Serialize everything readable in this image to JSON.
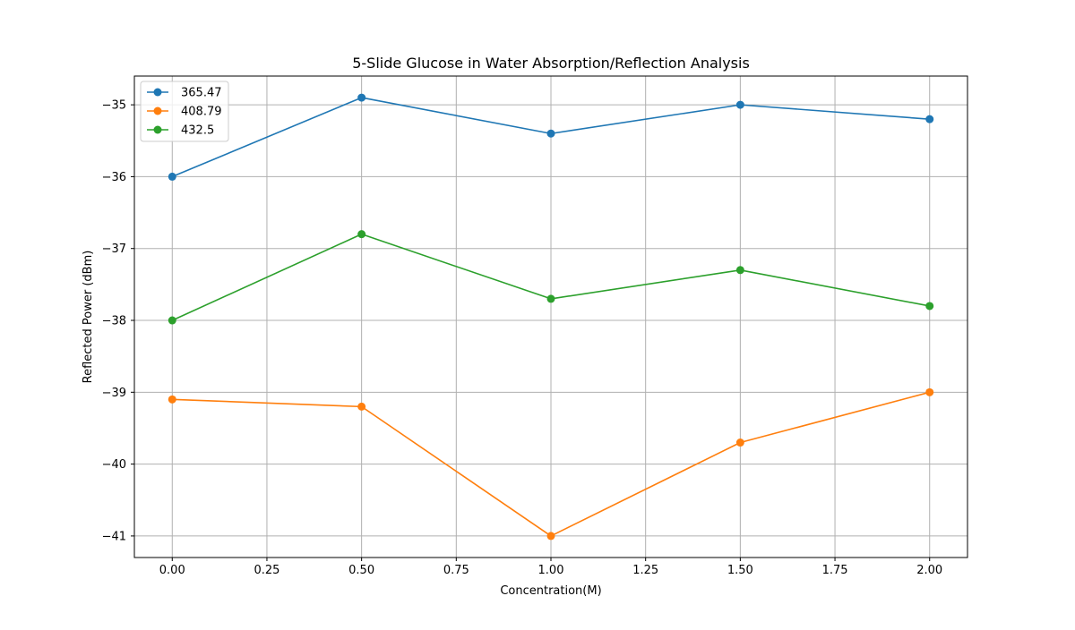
{
  "chart_data": {
    "type": "line",
    "title": "5-Slide Glucose in Water Absorption/Reflection Analysis",
    "xlabel": "Concentration(M)",
    "ylabel": "Reflected Power (dBm)",
    "x": [
      0.0,
      0.5,
      1.0,
      1.5,
      2.0
    ],
    "xlim": [
      -0.1,
      2.1
    ],
    "ylim": [
      -41.3,
      -34.6
    ],
    "xticks": [
      0.0,
      0.25,
      0.5,
      0.75,
      1.0,
      1.25,
      1.5,
      1.75,
      2.0
    ],
    "xtick_labels": [
      "0.00",
      "0.25",
      "0.50",
      "0.75",
      "1.00",
      "1.25",
      "1.50",
      "1.75",
      "2.00"
    ],
    "yticks": [
      -41,
      -40,
      -39,
      -38,
      -37,
      -36,
      -35
    ],
    "ytick_labels": [
      "−41",
      "−40",
      "−39",
      "−38",
      "−37",
      "−36",
      "−35"
    ],
    "grid": true,
    "legend_position": "top-left",
    "series": [
      {
        "name": "365.47",
        "color": "#1f77b4",
        "marker": "circle",
        "values": [
          -36.0,
          -34.9,
          -35.4,
          -35.0,
          -35.2
        ]
      },
      {
        "name": "408.79",
        "color": "#ff7f0e",
        "marker": "circle",
        "values": [
          -39.1,
          -39.2,
          -41.0,
          -39.7,
          -39.0
        ]
      },
      {
        "name": "432.5",
        "color": "#2ca02c",
        "marker": "circle",
        "values": [
          -38.0,
          -36.8,
          -37.7,
          -37.3,
          -37.8
        ]
      }
    ]
  }
}
